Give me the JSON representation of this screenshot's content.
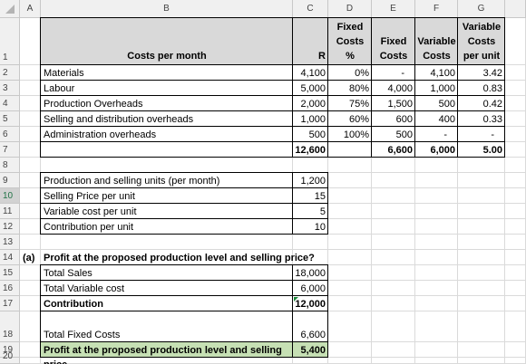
{
  "columns": [
    "A",
    "B",
    "C",
    "D",
    "E",
    "F",
    "G"
  ],
  "rows": [
    {
      "number": "1",
      "cells": {
        "B": "Costs per month",
        "C": "R",
        "D": "Fixed Costs %",
        "E": "Fixed Costs",
        "F": "Variable Costs",
        "G": "Variable Costs per unit"
      }
    },
    {
      "number": "2",
      "cells": {
        "B": "Materials",
        "C": "4,100",
        "D": "0%",
        "E": "-",
        "F": "4,100",
        "G": "3.42"
      }
    },
    {
      "number": "3",
      "cells": {
        "B": "Labour",
        "C": "5,000",
        "D": "80%",
        "E": "4,000",
        "F": "1,000",
        "G": "0.83"
      }
    },
    {
      "number": "4",
      "cells": {
        "B": "Production Overheads",
        "C": "2,000",
        "D": "75%",
        "E": "1,500",
        "F": "500",
        "G": "0.42"
      }
    },
    {
      "number": "5",
      "cells": {
        "B": "Selling and distribution overheads",
        "C": "1,000",
        "D": "60%",
        "E": "600",
        "F": "400",
        "G": "0.33"
      }
    },
    {
      "number": "6",
      "cells": {
        "B": "Administration overheads",
        "C": "500",
        "D": "100%",
        "E": "500",
        "F": "-",
        "G": "-"
      }
    },
    {
      "number": "7",
      "cells": {
        "C": "12,600",
        "E": "6,600",
        "F": "6,000",
        "G": "5.00"
      }
    },
    {
      "number": "8",
      "cells": {}
    },
    {
      "number": "9",
      "cells": {
        "B": "Production and selling units (per month)",
        "C": "1,200"
      }
    },
    {
      "number": "10",
      "cells": {
        "B": "Selling Price per unit",
        "C": "15"
      }
    },
    {
      "number": "11",
      "cells": {
        "B": "Variable cost per unit",
        "C": "5"
      }
    },
    {
      "number": "12",
      "cells": {
        "B": "Contribution per unit",
        "C": "10"
      }
    },
    {
      "number": "13",
      "cells": {}
    },
    {
      "number": "14",
      "cells": {
        "A": "(a)",
        "B": "Profit at the proposed production level and selling price?"
      }
    },
    {
      "number": "15",
      "cells": {
        "B": "Total Sales",
        "C": "18,000"
      }
    },
    {
      "number": "16",
      "cells": {
        "B": "Total Variable cost",
        "C": "6,000"
      }
    },
    {
      "number": "17",
      "cells": {
        "B": "Contribution",
        "C": "12,000"
      }
    },
    {
      "number": "18",
      "cells": {
        "B": "Total Fixed Costs",
        "C": "6,600"
      }
    },
    {
      "number": "19",
      "cells": {
        "B": "Profit at the proposed production level and selling price",
        "C": "5,400"
      }
    },
    {
      "number": "20",
      "cells": {}
    }
  ]
}
